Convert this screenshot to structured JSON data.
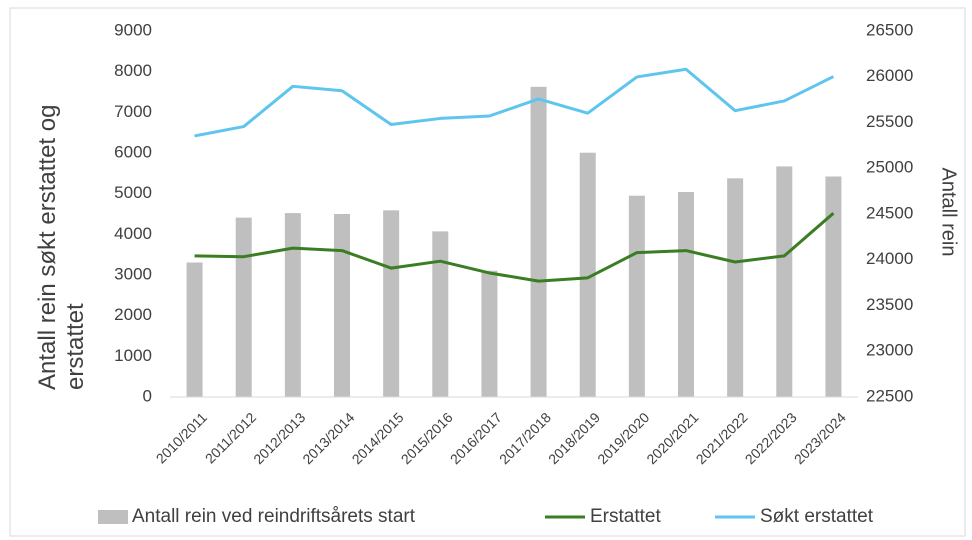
{
  "chart_data": {
    "type": "bar_line",
    "ylabel": "Antall rein søkt erstattet og erstattet",
    "y2label": "Antall rein",
    "categories": [
      "2010/2011",
      "2011/2012",
      "2012/2013",
      "2013/2014",
      "2014/2015",
      "2015/2016",
      "2016/2017",
      "2017/2018",
      "2018/2019",
      "2019/2020",
      "2020/2021",
      "2021/2022",
      "2022/2023",
      "2023/2024"
    ],
    "series": [
      {
        "name": "Antall rein ved reindriftsårets start",
        "type": "bar",
        "axis": "y2",
        "color": "#bfbfbf",
        "values": [
          23970,
          24460,
          24510,
          24500,
          24540,
          24310,
          23880,
          25890,
          25170,
          24700,
          24740,
          24890,
          25020,
          24910
        ]
      },
      {
        "name": "Erstattet",
        "type": "line",
        "color": "#3a7d22",
        "values": [
          3470,
          3450,
          3660,
          3600,
          3170,
          3340,
          3050,
          2850,
          2930,
          3550,
          3600,
          3320,
          3470,
          4520
        ]
      },
      {
        "name": "Søkt erstattet",
        "type": "line",
        "color": "#5ec5ee",
        "values": [
          6420,
          6650,
          7640,
          7530,
          6700,
          6850,
          6910,
          7330,
          6980,
          7870,
          8060,
          7040,
          7280,
          7880
        ]
      }
    ],
    "ylim": [
      0,
      9000
    ],
    "yticks": [
      0,
      1000,
      2000,
      3000,
      4000,
      5000,
      6000,
      7000,
      8000,
      9000
    ],
    "y2lim": [
      22500,
      26500
    ],
    "y2ticks": [
      22500,
      23000,
      23500,
      24000,
      24500,
      25000,
      25500,
      26000,
      26500
    ],
    "grid": false,
    "legend": "bottom"
  }
}
